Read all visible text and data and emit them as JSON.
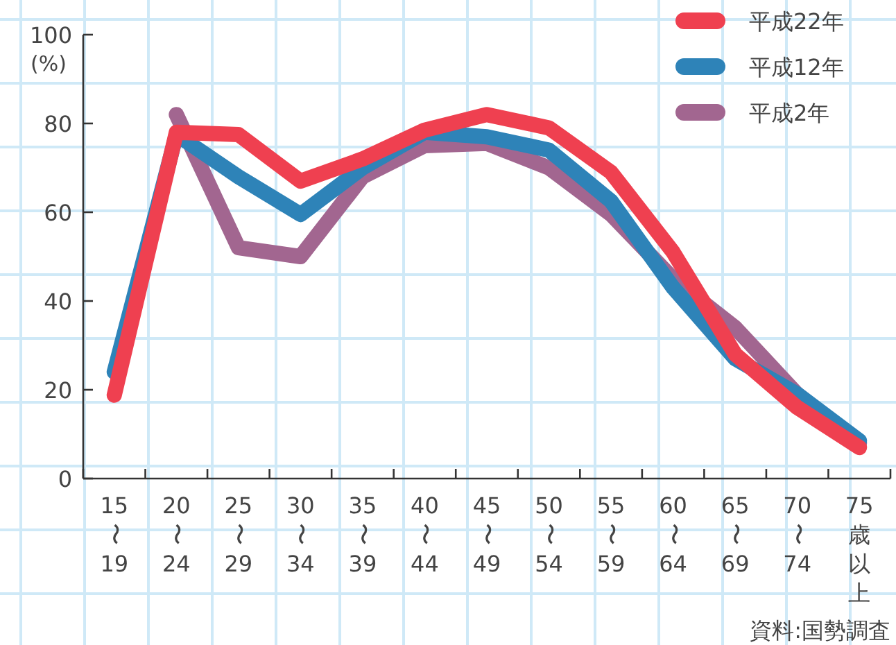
{
  "chart_data": {
    "type": "line",
    "ylabel": "(%)",
    "legend": "top right",
    "line_style": "solid",
    "marker": "none",
    "categories": [
      "15〜19",
      "20〜24",
      "25〜29",
      "30〜34",
      "35〜39",
      "40〜44",
      "45〜49",
      "50〜54",
      "55〜59",
      "60〜64",
      "65〜69",
      "70〜74",
      "75歳以上"
    ],
    "ylim": [
      0,
      100
    ],
    "yticks": [
      0,
      20,
      40,
      60,
      80,
      100
    ],
    "series": [
      {
        "name": "平成2年",
        "color": "#a26690",
        "values": [
          null,
          82,
          52,
          50,
          68,
          75,
          75.5,
          70,
          59.5,
          45,
          34,
          19,
          8
        ]
      },
      {
        "name": "平成12年",
        "color": "#2e83b8",
        "values": [
          24,
          77.5,
          68,
          59.5,
          70,
          78,
          77,
          74,
          62.5,
          43,
          27,
          19,
          8.5
        ]
      },
      {
        "name": "平成22年",
        "color": "#ef4050",
        "values": [
          18.8,
          78,
          77.5,
          67,
          72,
          78.5,
          82,
          79,
          69,
          51,
          28,
          16,
          7
        ]
      }
    ],
    "annotations": [
      "資料:国勢調査"
    ]
  }
}
